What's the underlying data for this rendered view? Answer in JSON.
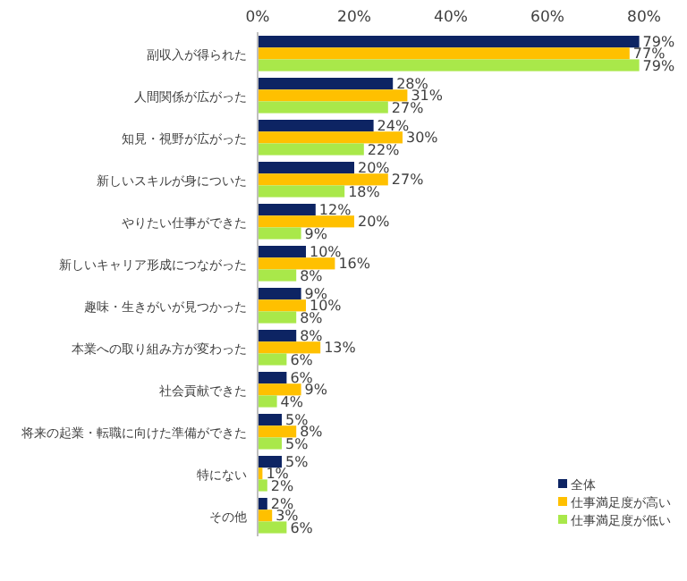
{
  "chart_data": {
    "type": "bar",
    "orientation": "horizontal",
    "categories": [
      "副収入が得られた",
      "人間関係が広がった",
      "知見・視野が広がった",
      "新しいスキルが身についた",
      "やりたい仕事ができた",
      "新しいキャリア形成につながった",
      "趣味・生きがいが見つかった",
      "本業への取り組み方が変わった",
      "社会貢献できた",
      "将来の起業・転職に向けた準備ができた",
      "特にない",
      "その他"
    ],
    "series": [
      {
        "name": "全体",
        "color": "#0d2463",
        "values": [
          79,
          28,
          24,
          20,
          12,
          10,
          9,
          8,
          6,
          5,
          5,
          2
        ],
        "value_labels": [
          "79%",
          "28%",
          "24%",
          "20%",
          "12%",
          "10%",
          "9%",
          "8%",
          "6%",
          "5%",
          "5%",
          "2%"
        ]
      },
      {
        "name": "仕事満足度が高い",
        "color": "#ffc000",
        "values": [
          77,
          31,
          30,
          27,
          20,
          16,
          10,
          13,
          9,
          8,
          1,
          3
        ],
        "value_labels": [
          "77%",
          "31%",
          "30%",
          "27%",
          "20%",
          "16%",
          "10%",
          "13%",
          "9%",
          "8%",
          "1%",
          "3%"
        ]
      },
      {
        "name": "仕事満足度が低い",
        "color": "#a9e84a",
        "values": [
          79,
          27,
          22,
          18,
          9,
          8,
          8,
          6,
          4,
          5,
          2,
          6
        ],
        "value_labels": [
          "79%",
          "27%",
          "22%",
          "18%",
          "9%",
          "8%",
          "8%",
          "6%",
          "4%",
          "5%",
          "2%",
          "6%"
        ]
      }
    ],
    "xlim": [
      0,
      80
    ],
    "xticks": [
      {
        "value": 0,
        "label": "0%"
      },
      {
        "value": 20,
        "label": "20%"
      },
      {
        "value": 40,
        "label": "40%"
      },
      {
        "value": 60,
        "label": "60%"
      },
      {
        "value": 80,
        "label": "80%"
      }
    ],
    "grid": false,
    "legend": "bottom right"
  }
}
